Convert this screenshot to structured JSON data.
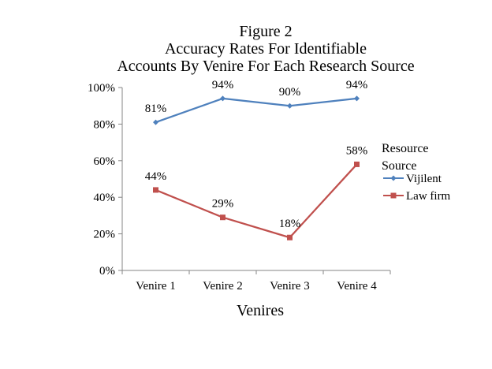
{
  "chart_data": {
    "type": "line",
    "title_lines": [
      "Figure 2",
      "Accuracy Rates For Identifiable",
      "Accounts By Venire For Each Research Source"
    ],
    "xlabel": "Venires",
    "ylabel": "",
    "categories": [
      "Venire 1",
      "Venire 2",
      "Venire 3",
      "Venire 4"
    ],
    "ylim": [
      0,
      100
    ],
    "yticks": [
      "0%",
      "20%",
      "40%",
      "60%",
      "80%",
      "100%"
    ],
    "grid": false,
    "legend_position": "right",
    "legend_title_lines": [
      "Resource",
      "Source"
    ],
    "series": [
      {
        "name": "Vijilent",
        "values": [
          81,
          94,
          90,
          94
        ],
        "labels": [
          "81%",
          "94%",
          "90%",
          "94%"
        ],
        "color": "#4F81BD",
        "marker": "diamond"
      },
      {
        "name": "Law firm",
        "values": [
          44,
          29,
          18,
          58
        ],
        "labels": [
          "44%",
          "29%",
          "18%",
          "58%"
        ],
        "color": "#C0504D",
        "marker": "square"
      }
    ]
  }
}
